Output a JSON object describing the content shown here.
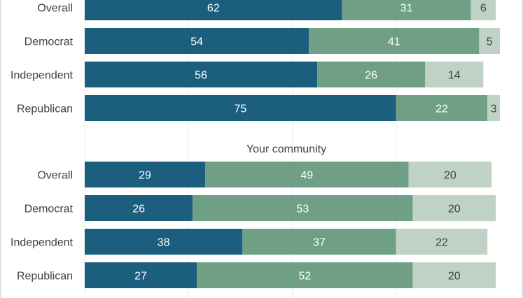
{
  "chart_data": {
    "type": "bar",
    "orientation": "horizontal",
    "stacked": true,
    "xlim": [
      0,
      100
    ],
    "grid": true,
    "colors": [
      "#1b5e7e",
      "#6fa086",
      "#c0d2c6"
    ],
    "panels": [
      {
        "title": "",
        "categories": [
          "Overall",
          "Democrat",
          "Independent",
          "Republican"
        ],
        "series": [
          {
            "values": [
              62,
              54,
              56,
              75
            ]
          },
          {
            "values": [
              31,
              41,
              26,
              22
            ]
          },
          {
            "values": [
              6,
              5,
              14,
              3
            ]
          }
        ]
      },
      {
        "title": "Your community",
        "categories": [
          "Overall",
          "Democrat",
          "Independent",
          "Republican"
        ],
        "series": [
          {
            "values": [
              29,
              26,
              38,
              27
            ]
          },
          {
            "values": [
              49,
              53,
              37,
              52
            ]
          },
          {
            "values": [
              20,
              20,
              22,
              20
            ]
          }
        ]
      }
    ]
  }
}
